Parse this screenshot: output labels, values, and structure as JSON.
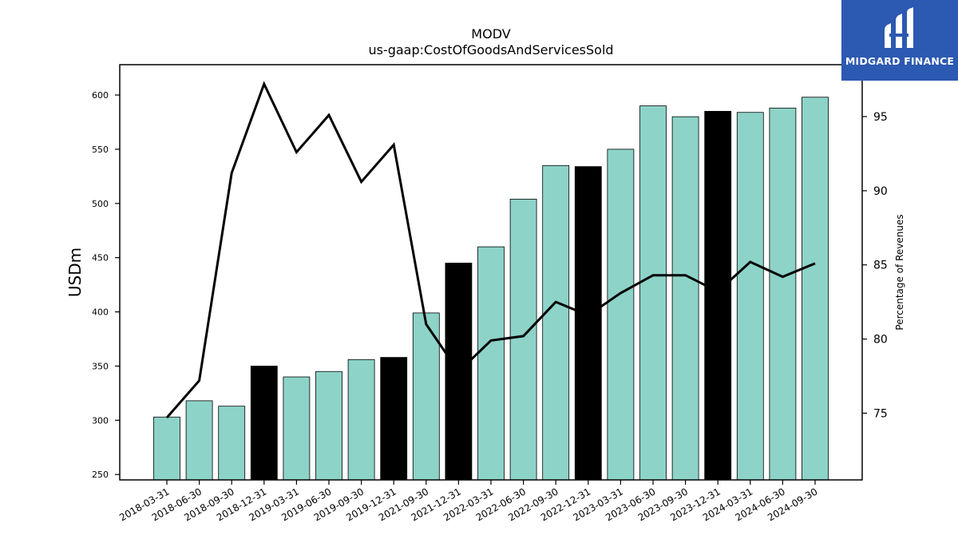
{
  "chart_data": {
    "type": "bar",
    "title": "MODV",
    "subtitle": "us-gaap:CostOfGoodsAndServicesSold",
    "ylabel": "USDm",
    "y2label": "Percentage of Revenues",
    "ylim": [
      245,
      628
    ],
    "y2lim": [
      70.5,
      98.5
    ],
    "yticks": [
      250,
      300,
      350,
      400,
      450,
      500,
      550,
      600
    ],
    "y2ticks": [
      75,
      80,
      85,
      90,
      95
    ],
    "categories": [
      "2018-03-31",
      "2018-06-30",
      "2018-09-30",
      "2018-12-31",
      "2019-03-31",
      "2019-06-30",
      "2019-09-30",
      "2019-12-31",
      "2021-09-30",
      "2021-12-31",
      "2022-03-31",
      "2022-06-30",
      "2022-09-30",
      "2022-12-31",
      "2023-03-31",
      "2023-06-30",
      "2023-09-30",
      "2023-12-31",
      "2024-03-31",
      "2024-06-30",
      "2024-09-30"
    ],
    "series": [
      {
        "type": "bar",
        "values": [
          303,
          318,
          313,
          350,
          340,
          345,
          356,
          358,
          399,
          445,
          460,
          504,
          535,
          534,
          550,
          590,
          580,
          585,
          584,
          588,
          598
        ],
        "annual": [
          false,
          false,
          false,
          true,
          false,
          false,
          false,
          true,
          false,
          true,
          false,
          false,
          false,
          true,
          false,
          false,
          false,
          true,
          false,
          false,
          false
        ]
      },
      {
        "type": "line",
        "axis": "right",
        "values": [
          74.7,
          77.2,
          91.2,
          97.2,
          92.6,
          95.1,
          90.6,
          93.1,
          81.0,
          77.8,
          79.9,
          80.2,
          82.5,
          81.6,
          83.1,
          84.3,
          84.3,
          83.2,
          85.2,
          84.2,
          85.1
        ]
      }
    ],
    "colors": {
      "bar": "#8dd3c7",
      "bar_annual": "#000000",
      "line": "#000000"
    }
  },
  "logo": {
    "text": "MIDGARD FINANCE"
  }
}
